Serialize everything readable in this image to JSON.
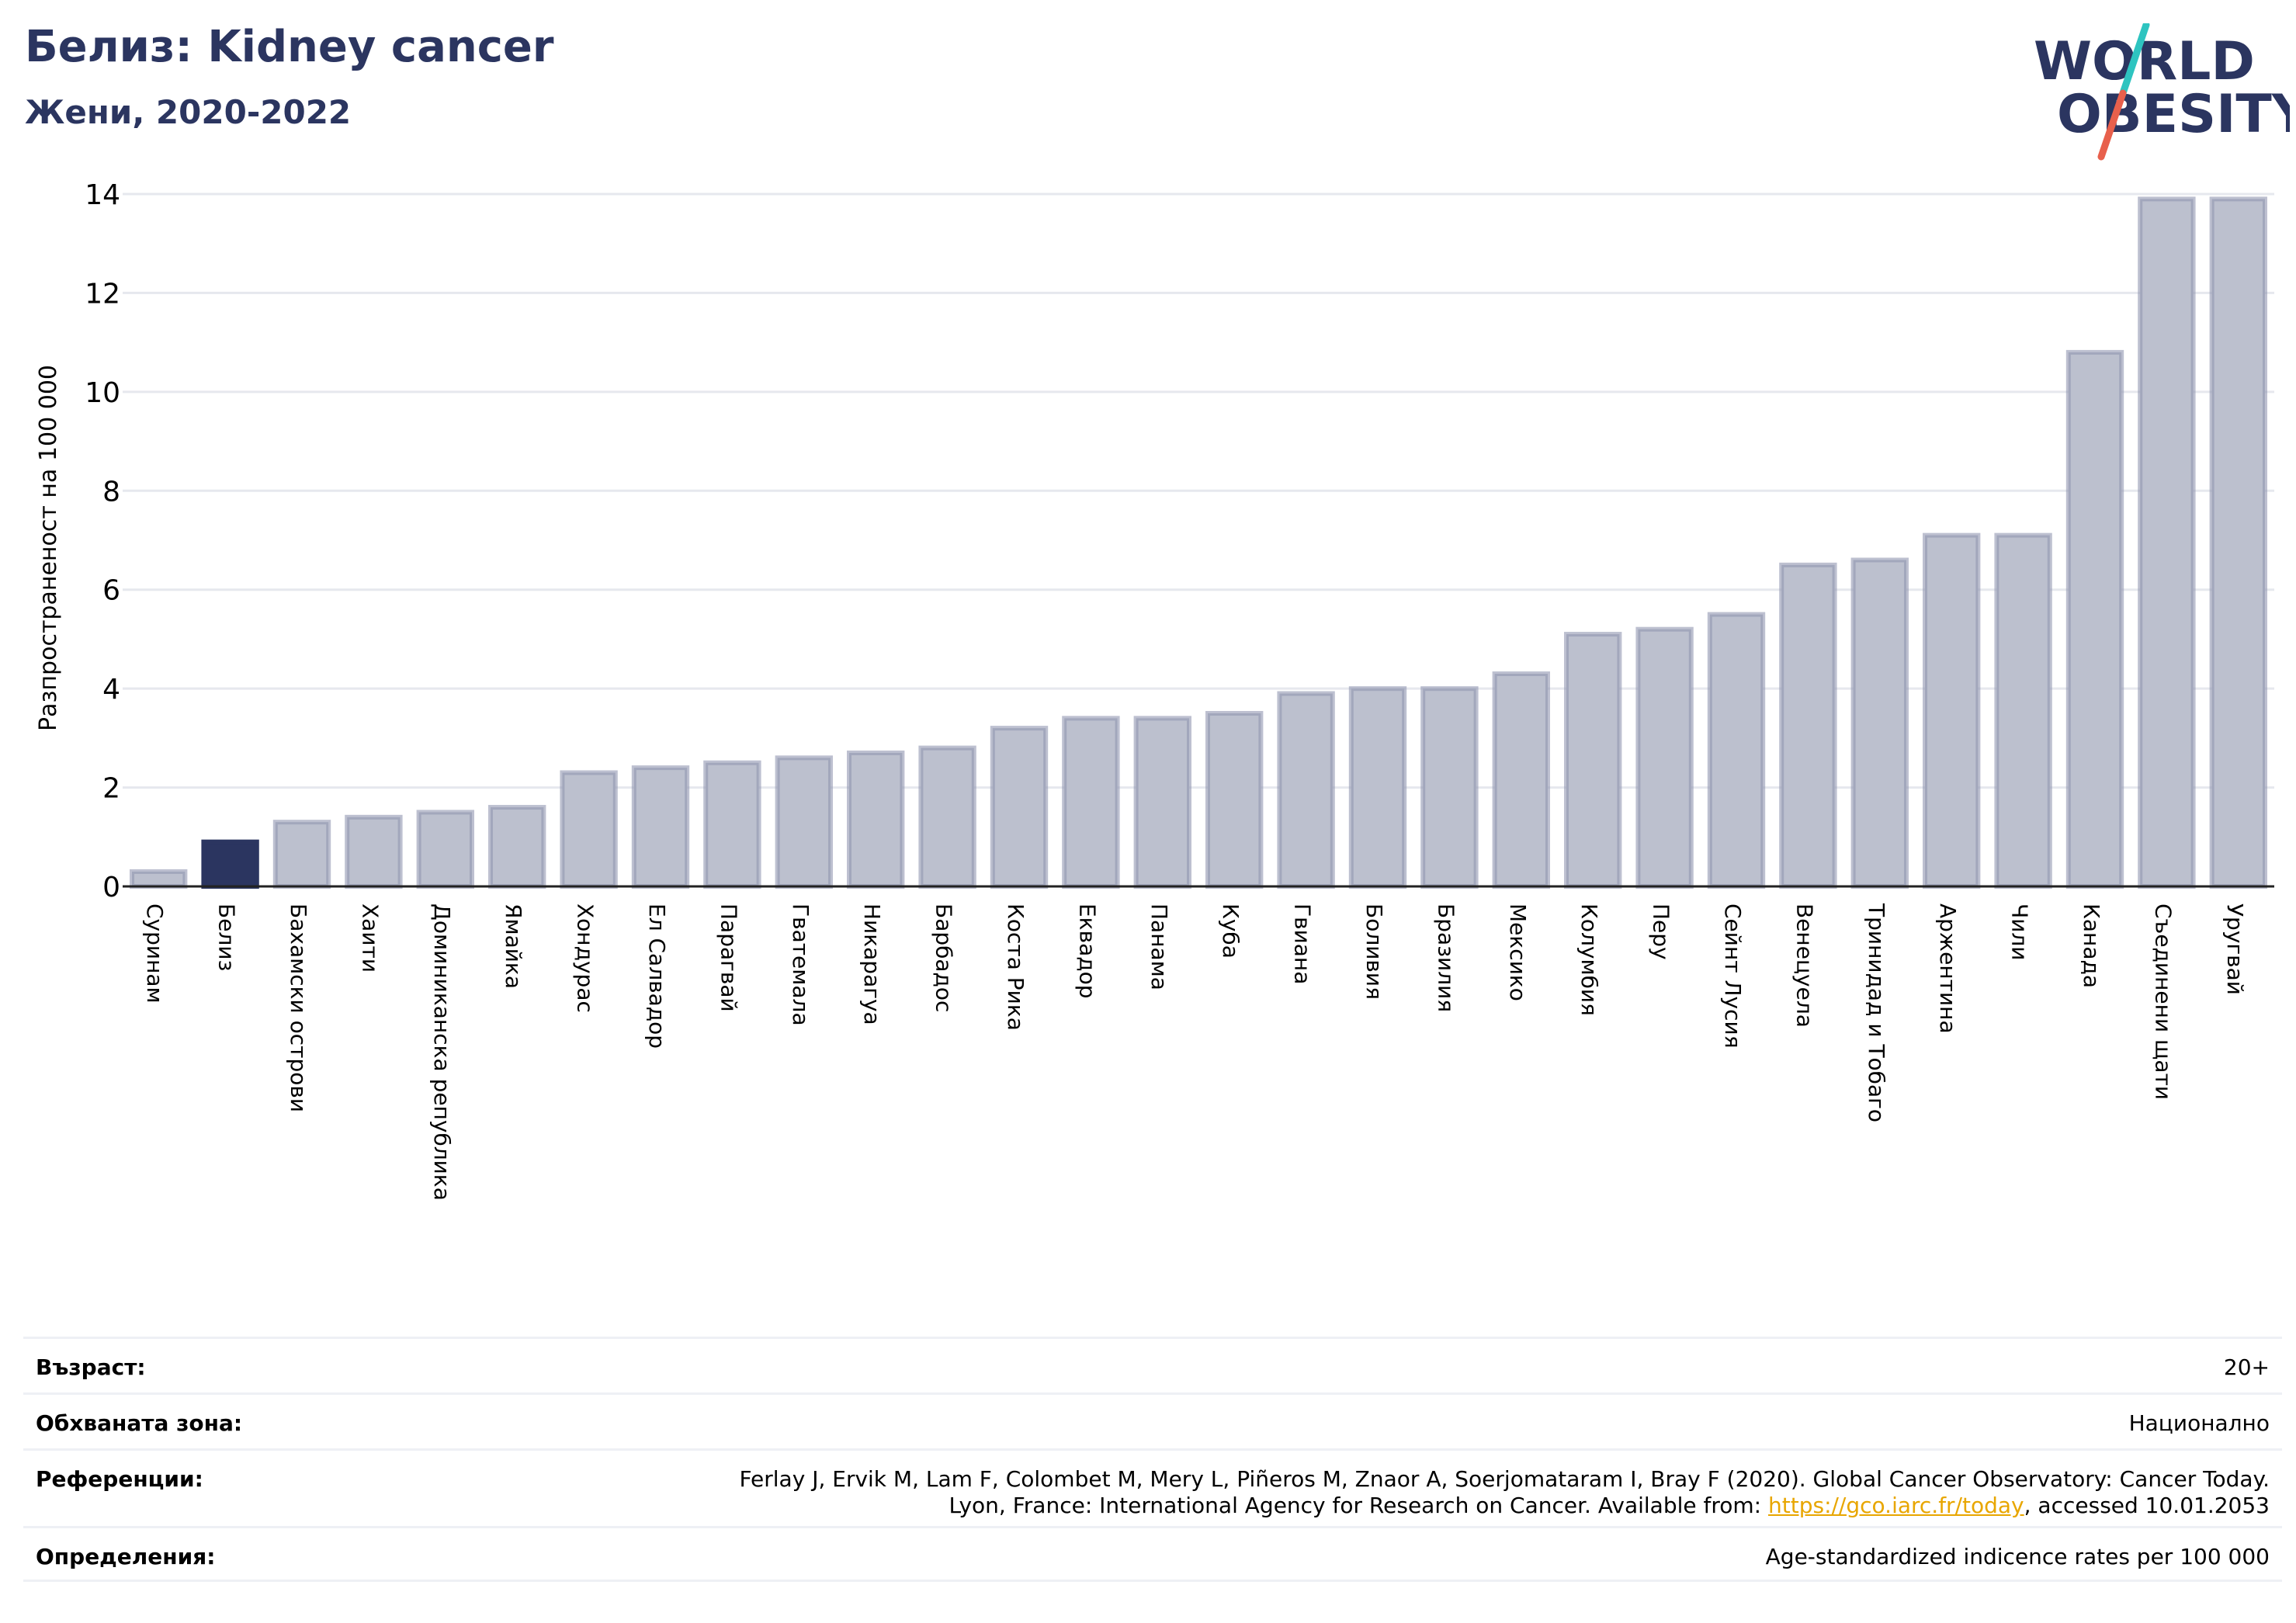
{
  "header": {
    "title": "Белиз: Kidney cancer",
    "subtitle": "Жени, 2020-2022"
  },
  "logo": {
    "line1": "WORLD",
    "line2": "OBESITY",
    "colors": {
      "text": "#2b3560",
      "slash_top": "#2ec4c0",
      "slash_bottom": "#e8604c"
    }
  },
  "colors": {
    "highlight": "#2b3560",
    "bar_fill": "#bcc0ce",
    "bar_stroke": "#9196b0",
    "grid": "#e6e8ee",
    "axis": "#222222",
    "link": "#e8a600"
  },
  "chart_data": {
    "type": "bar",
    "title": "",
    "xlabel": "",
    "ylabel": "Разпространеност  на 100 000",
    "ylim": [
      0,
      14
    ],
    "yticks": [
      0,
      2,
      4,
      6,
      8,
      10,
      12,
      14
    ],
    "grid": true,
    "highlight_category": "Белиз",
    "categories": [
      "Суринам",
      "Белиз",
      "Бахамски острови",
      "Хаити",
      "Доминиканска република",
      "Ямайка",
      "Хондурас",
      "Ел Салвадор",
      "Парагвай",
      "Гватемала",
      "Никарагуа",
      "Барбадос",
      "Коста Рика",
      "Еквадор",
      "Панама",
      "Куба",
      "Гвиана",
      "Боливия",
      "Бразилия",
      "Мексико",
      "Колумбия",
      "Перу",
      "Сейнт Лусия",
      "Венецуела",
      "Тринидад и Тобаго",
      "Аржентина",
      "Чили",
      "Канада",
      "Съединени щати",
      "Уругвай"
    ],
    "values": [
      0.3,
      0.9,
      1.3,
      1.4,
      1.5,
      1.6,
      2.3,
      2.4,
      2.5,
      2.6,
      2.7,
      2.8,
      3.2,
      3.4,
      3.4,
      3.5,
      3.9,
      4.0,
      4.0,
      4.3,
      5.1,
      5.2,
      5.5,
      6.5,
      6.6,
      7.1,
      7.1,
      10.8,
      13.9,
      13.9
    ]
  },
  "info": {
    "age_label": "Възраст:",
    "age_value": "20+",
    "area_label": "Обхваната зона:",
    "area_value": "Национално",
    "refs_label": "Референции:",
    "refs_line1": "Ferlay J, Ervik M, Lam F, Colombet M, Mery L, Piñeros M, Znaor A, Soerjomataram I, Bray F (2020). Global Cancer Observatory: Cancer Today.",
    "refs_line2_pre": "Lyon, France: International Agency for Research on Cancer. Available from: ",
    "refs_link": "https://gco.iarc.fr/today",
    "refs_line2_post": ", accessed 10.01.2053",
    "defs_label": "Определения:",
    "defs_value": "Age-standardized indicence rates per 100 000"
  }
}
